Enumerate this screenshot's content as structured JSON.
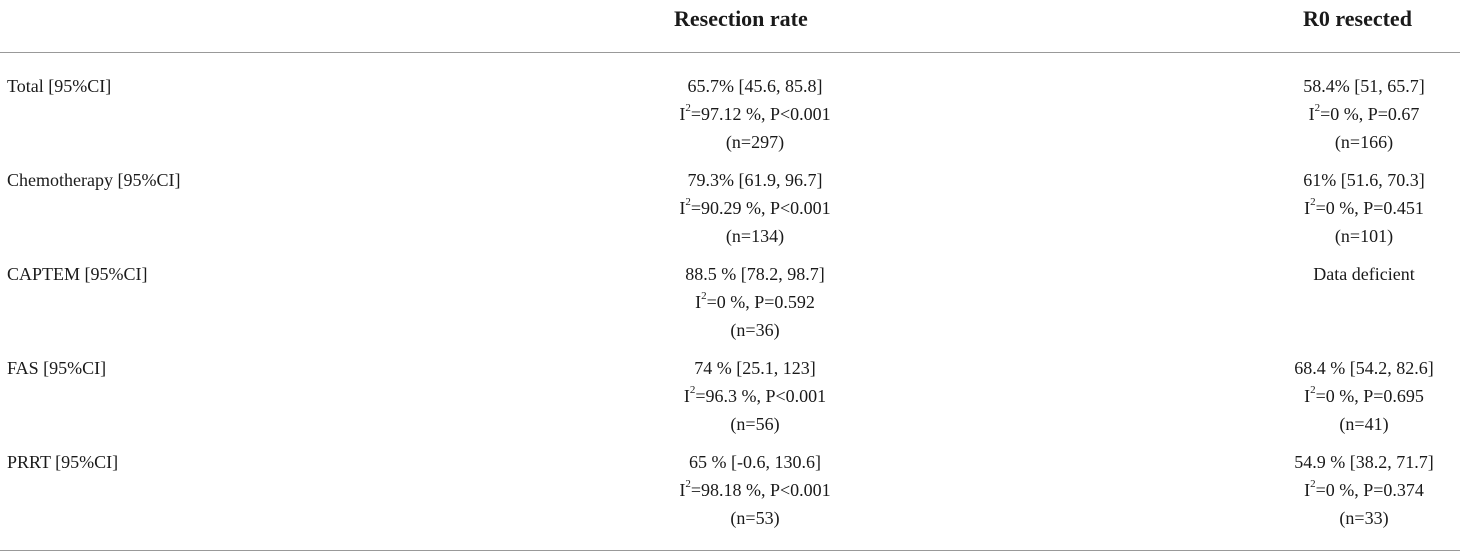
{
  "columns": {
    "resection": "Resection rate",
    "r0": "R0 resected"
  },
  "rows": [
    {
      "label": "Total [95%CI]",
      "resection": {
        "estimate": "65.7% [45.6, 85.8]",
        "het_pre": "I",
        "het_post": "=97.12 %, P<0.001",
        "n": "(n=297)"
      },
      "r0": {
        "estimate": "58.4% [51, 65.7]",
        "het_pre": "I",
        "het_post": "=0 %, P=0.67",
        "n": "(n=166)"
      }
    },
    {
      "label": "Chemotherapy [95%CI]",
      "resection": {
        "estimate": "79.3% [61.9, 96.7]",
        "het_pre": "I",
        "het_post": "=90.29 %, P<0.001",
        "n": "(n=134)"
      },
      "r0": {
        "estimate": "61% [51.6, 70.3]",
        "het_pre": "I",
        "het_post": "=0 %, P=0.451",
        "n": "(n=101)"
      }
    },
    {
      "label": "CAPTEM [95%CI]",
      "resection": {
        "estimate": "88.5 % [78.2, 98.7]",
        "het_pre": "I",
        "het_post": "=0 %, P=0.592",
        "n": "(n=36)"
      },
      "r0": {
        "estimate": "Data deficient",
        "het_pre": "",
        "het_post": "",
        "n": ""
      }
    },
    {
      "label": "FAS [95%CI]",
      "resection": {
        "estimate": "74 % [25.1, 123]",
        "het_pre": "I",
        "het_post": "=96.3 %, P<0.001",
        "n": "(n=56)"
      },
      "r0": {
        "estimate": "68.4 % [54.2, 82.6]",
        "het_pre": "I",
        "het_post": "=0 %, P=0.695",
        "n": "(n=41)"
      }
    },
    {
      "label": "PRRT [95%CI]",
      "resection": {
        "estimate": "65 % [-0.6, 130.6]",
        "het_pre": "I",
        "het_post": "=98.18 %, P<0.001",
        "n": "(n=53)"
      },
      "r0": {
        "estimate": "54.9 % [38.2, 71.7]",
        "het_pre": "I",
        "het_post": "=0 %, P=0.374",
        "n": "(n=33)"
      }
    }
  ],
  "superscript": "2"
}
